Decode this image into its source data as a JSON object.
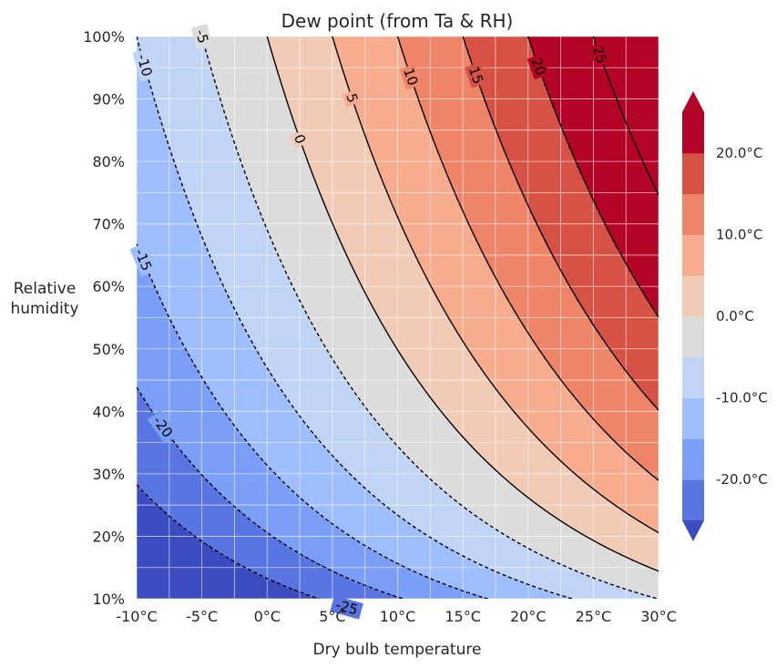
{
  "chart_data": {
    "type": "contour",
    "title": "Dew point (from Ta & RH)",
    "xlabel": "Dry bulb temperature",
    "ylabel_lines": [
      "Relative",
      "humidity"
    ],
    "x_range": [
      -10,
      30
    ],
    "y_range": [
      10,
      100
    ],
    "x_ticks": [
      -10,
      -5,
      0,
      5,
      10,
      15,
      20,
      25,
      30
    ],
    "x_tick_labels": [
      "-10°C",
      "-5°C",
      "0°C",
      "5°C",
      "10°C",
      "15°C",
      "20°C",
      "25°C",
      "30°C"
    ],
    "y_ticks": [
      10,
      20,
      30,
      40,
      50,
      60,
      70,
      80,
      90,
      100
    ],
    "y_tick_labels": [
      "10%",
      "20%",
      "30%",
      "40%",
      "50%",
      "60%",
      "70%",
      "80%",
      "90%",
      "100%"
    ],
    "fill_levels": [
      -25,
      -20,
      -15,
      -10,
      -5,
      0,
      5,
      10,
      15,
      20,
      25
    ],
    "fill_colors": [
      "#3b4cc0",
      "#5875e1",
      "#7b9ff9",
      "#9ebeff",
      "#c0d4f5",
      "#dddcdc",
      "#f2cbb7",
      "#f7ac8e",
      "#ee8468",
      "#d65244",
      "#b40426",
      "#b40426"
    ],
    "contour_lines": [
      {
        "level": -25,
        "label": "-25",
        "style": "dashed",
        "label_at": [
          6.1,
          14.0
        ]
      },
      {
        "level": -20,
        "label": "-20",
        "style": "dashed",
        "label_at": [
          -8.0,
          35.5
        ]
      },
      {
        "level": -15,
        "label": "-15",
        "style": "dashed",
        "label_at": [
          -9.5,
          59.5
        ]
      },
      {
        "level": -10,
        "label": "-10",
        "style": "dashed",
        "label_at": [
          -9.4,
          92.0
        ]
      },
      {
        "level": -5,
        "label": "-5",
        "style": "dashed",
        "label_at": [
          -5.0,
          95.6
        ]
      },
      {
        "level": 0,
        "label": "0",
        "style": "solid",
        "label_at": [
          2.5,
          85.5
        ]
      },
      {
        "level": 5,
        "label": "5",
        "style": "solid",
        "label_at": [
          6.5,
          92.7
        ]
      },
      {
        "level": 10,
        "label": "10",
        "style": "solid",
        "label_at": [
          11.0,
          96.9
        ]
      },
      {
        "level": 15,
        "label": "15",
        "style": "solid",
        "label_at": [
          16.0,
          97.5
        ]
      },
      {
        "level": 20,
        "label": "20",
        "style": "solid",
        "label_at": [
          20.8,
          97.2
        ]
      },
      {
        "level": 25,
        "label": "25",
        "style": "solid",
        "label_at": [
          25.5,
          96.4
        ]
      }
    ],
    "colorbar": {
      "tick_values": [
        20,
        10,
        0,
        -10,
        -20
      ],
      "tick_labels": [
        "20.0°C",
        "10.0°C",
        "0.0°C",
        "-10.0°C",
        "-20.0°C"
      ],
      "extend": "both"
    },
    "grid": true
  }
}
